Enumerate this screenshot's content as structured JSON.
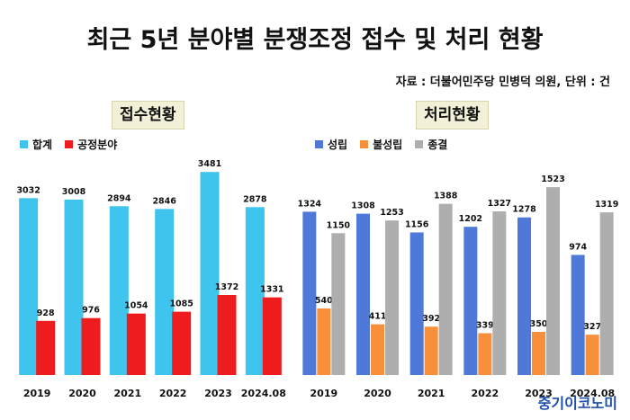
{
  "title": "최근 5년 분야별 분쟁조정 접수 및 처리 현황",
  "source": "자료 : 더불어민주당 민병덕 의원, 단위 : 건",
  "watermark": "중기이코노미",
  "colors": {
    "total": "#3fc4ee",
    "public": "#ee1c1c",
    "established": "#4f79d8",
    "not_established": "#f88f3a",
    "closed": "#aeaeae",
    "panel_bg": "#f3f0d8"
  },
  "chart_data": [
    {
      "type": "bar",
      "title": "접수현황",
      "categories": [
        "2019",
        "2020",
        "2021",
        "2022",
        "2023",
        "2024.08"
      ],
      "series": [
        {
          "name": "합계",
          "color": "#3fc4ee",
          "values": [
            3032,
            3008,
            2894,
            2846,
            3481,
            2878
          ]
        },
        {
          "name": "공정분야",
          "color": "#ee1c1c",
          "values": [
            928,
            976,
            1054,
            1085,
            1372,
            1331
          ]
        }
      ],
      "ylim": [
        0,
        3700
      ],
      "legend": "top-left",
      "grid": false
    },
    {
      "type": "bar",
      "title": "처리현황",
      "categories": [
        "2019",
        "2020",
        "2021",
        "2022",
        "2023",
        "2024.08"
      ],
      "series": [
        {
          "name": "성립",
          "color": "#4f79d8",
          "values": [
            1324,
            1308,
            1156,
            1202,
            1278,
            974
          ]
        },
        {
          "name": "불성립",
          "color": "#f88f3a",
          "values": [
            540,
            411,
            392,
            339,
            350,
            327
          ]
        },
        {
          "name": "종결",
          "color": "#aeaeae",
          "values": [
            1150,
            1253,
            1388,
            1327,
            1523,
            1319
          ]
        }
      ],
      "ylim": [
        0,
        1750
      ],
      "legend": "top-left",
      "grid": false
    }
  ]
}
